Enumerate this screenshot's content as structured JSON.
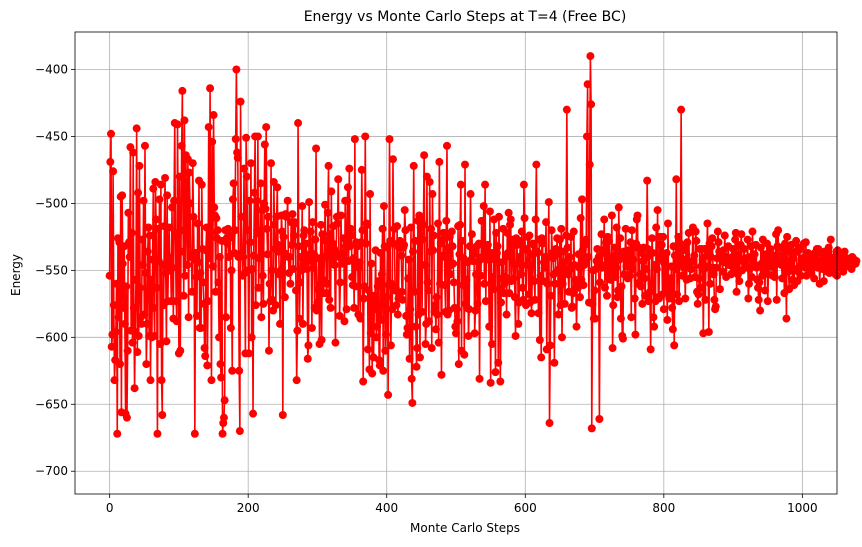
{
  "chart_data": {
    "type": "line",
    "title": "Energy vs Monte Carlo Steps at T=4 (Free BC)",
    "xlabel": "Monte Carlo Steps",
    "ylabel": "Energy",
    "xlim": [
      -50,
      1050
    ],
    "ylim": [
      -717,
      -372
    ],
    "xticks": [
      0,
      200,
      400,
      600,
      800,
      1000
    ],
    "xtick_labels": [
      "0",
      "200",
      "400",
      "600",
      "800",
      "1000"
    ],
    "yticks": [
      -400,
      -450,
      -500,
      -550,
      -600,
      -650,
      -700
    ],
    "ytick_labels": [
      "−400",
      "−450",
      "−500",
      "−550",
      "−600",
      "−650",
      "−700"
    ],
    "grid": true,
    "marker": "circle",
    "color": "#ff0000",
    "n_points": 1000,
    "series": [
      {
        "x_start": 0,
        "x_step": 1,
        "values": [
          -554,
          -469,
          -448,
          -607,
          -598,
          -476,
          -576,
          -632,
          -617,
          -596,
          -560,
          -672,
          -526,
          -585,
          -529,
          -620,
          -495,
          -656,
          -494,
          -545,
          -578,
          -532,
          -590,
          -657,
          -562,
          -660,
          -610,
          -507,
          -529,
          -540,
          -458,
          -595,
          -522,
          -604,
          -462,
          -578,
          -638,
          -596,
          -557,
          -444,
          -611,
          -492,
          -599,
          -472,
          -563,
          -585,
          -590,
          -527,
          -546,
          -498,
          -583,
          -457,
          -552,
          -620,
          -590,
          -536,
          -518,
          -599,
          -524,
          -632,
          -557,
          -600,
          -542,
          -489,
          -578,
          -599,
          -484,
          -512,
          -563,
          -672,
          -519,
          -543,
          -497,
          -605,
          -486,
          -632,
          -658,
          -546,
          -576,
          -517,
          -481,
          -552,
          -603,
          -494,
          -573,
          -540,
          -518,
          -550,
          -544,
          -573,
          -503,
          -548,
          -586,
          -498,
          -440,
          -524,
          -573,
          -588,
          -441,
          -522,
          -612,
          -480,
          -610,
          -536,
          -457,
          -416,
          -520,
          -569,
          -438,
          -554,
          -464,
          -501,
          -546,
          -467,
          -585,
          -477,
          -500,
          -540,
          -538,
          -566,
          -470,
          -510,
          -542,
          -672,
          -537,
          -555,
          -584,
          -515,
          -544,
          -483,
          -593,
          -552,
          -593,
          -486,
          -534,
          -559,
          -575,
          -608,
          -614,
          -535,
          -518,
          -621,
          -573,
          -443,
          -541,
          -414,
          -522,
          -632,
          -454,
          -547,
          -434,
          -503,
          -509,
          -566,
          -511,
          -526,
          -520,
          -559,
          -600,
          -540,
          -620,
          -630,
          -528,
          -672,
          -664,
          -660,
          -647,
          -520,
          -585,
          -526,
          -530,
          -519,
          -540,
          -526,
          -524,
          -593,
          -550,
          -625,
          -497,
          -485,
          -537,
          -520,
          -452,
          -400,
          -462,
          -466,
          -540,
          -625,
          -670,
          -424,
          -510,
          -537,
          -554,
          -540,
          -474,
          -552,
          -612,
          -451,
          -480,
          -520,
          -550,
          -612,
          -498,
          -529,
          -470,
          -600,
          -549,
          -657,
          -539,
          -492,
          -450,
          -576,
          -498,
          -520,
          -450,
          -563,
          -541,
          -523,
          -485,
          -585,
          -505,
          -554,
          -575,
          -500,
          -456,
          -504,
          -443,
          -519,
          -538,
          -510,
          -610,
          -560,
          -573,
          -470,
          -550,
          -572,
          -580,
          -484,
          -516,
          -534,
          -576,
          -510,
          -488,
          -531,
          -536,
          -553,
          -590,
          -550,
          -509,
          -521,
          -658,
          -525,
          -537,
          -570,
          -508,
          -510,
          -509,
          -498,
          -540,
          -552,
          -540,
          -560,
          -514,
          -531,
          -508,
          -549,
          -524,
          -514,
          -515,
          -565,
          -632,
          -595,
          -440,
          -532,
          -586,
          -559,
          -540,
          -550,
          -502,
          -590,
          -524,
          -520,
          -545,
          -541,
          -530,
          -549,
          -616,
          -606,
          -499,
          -538,
          -521,
          -543,
          -593,
          -514,
          -548,
          -538,
          -578,
          -527,
          -459,
          -580,
          -574,
          -564,
          -541,
          -605,
          -561,
          -516,
          -602,
          -523,
          -557,
          -567,
          -540,
          -501,
          -528,
          -567,
          -560,
          -507,
          -472,
          -572,
          -523,
          -578,
          -491,
          -541,
          -530,
          -517,
          -534,
          -546,
          -604,
          -537,
          -510,
          -515,
          -482,
          -540,
          -584,
          -559,
          -509,
          -542,
          -545,
          -537,
          -526,
          -588,
          -498,
          -532,
          -579,
          -498,
          -488,
          -543,
          -474,
          -532,
          -519,
          -524,
          -555,
          -561,
          -541,
          -578,
          -452,
          -562,
          -529,
          -530,
          -532,
          -583,
          -548,
          -544,
          -586,
          -529,
          -475,
          -520,
          -633,
          -571,
          -562,
          -450,
          -530,
          -515,
          -516,
          -609,
          -565,
          -624,
          -493,
          -597,
          -545,
          -627,
          -569,
          -615,
          -579,
          -573,
          -535,
          -600,
          -592,
          -562,
          -558,
          -617,
          -621,
          -537,
          -587,
          -553,
          -519,
          -625,
          -502,
          -532,
          -610,
          -598,
          -570,
          -533,
          -643,
          -561,
          -452,
          -528,
          -606,
          -560,
          -579,
          -467,
          -530,
          -519,
          -565,
          -563,
          -576,
          -517,
          -583,
          -571,
          -533,
          -528,
          -532,
          -539,
          -566,
          -572,
          -533,
          -531,
          -505,
          -520,
          -584,
          -598,
          -593,
          -556,
          -542,
          -616,
          -579,
          -518,
          -631,
          -649,
          -536,
          -472,
          -566,
          -528,
          -592,
          -622,
          -608,
          -513,
          -583,
          -509,
          -615,
          -518,
          -513,
          -581,
          -527,
          -516,
          -464,
          -546,
          -605,
          -590,
          -480,
          -559,
          -565,
          -588,
          -484,
          -536,
          -519,
          -608,
          -493,
          -535,
          -524,
          -581,
          -576,
          -594,
          -570,
          -583,
          -515,
          -604,
          -469,
          -560,
          -530,
          -628,
          -540,
          -539,
          -522,
          -526,
          -561,
          -581,
          -513,
          -457,
          -583,
          -533,
          -580,
          -525,
          -553,
          -546,
          -521,
          -532,
          -545,
          -559,
          -578,
          -592,
          -597,
          -579,
          -588,
          -517,
          -620,
          -538,
          -516,
          -486,
          -610,
          -528,
          -561,
          -541,
          -613,
          -471,
          -575,
          -557,
          -578,
          -544,
          -599,
          -579,
          -532,
          -493,
          -542,
          -523,
          -543,
          -538,
          -535,
          -597,
          -580,
          -553,
          -532,
          -575,
          -544,
          -530,
          -631,
          -542,
          -554,
          -513,
          -540,
          -541,
          -502,
          -560,
          -486,
          -573,
          -533,
          -541,
          -531,
          -542,
          -592,
          -506,
          -634,
          -537,
          -605,
          -555,
          -564,
          -512,
          -542,
          -626,
          -522,
          -537,
          -532,
          -619,
          -510,
          -564,
          -633,
          -574,
          -544,
          -556,
          -519,
          -567,
          -560,
          -555,
          -540,
          -583,
          -522,
          -537,
          -507,
          -567,
          -516,
          -512,
          -558,
          -530,
          -527,
          -556,
          -531,
          -570,
          -599,
          -526,
          -531,
          -545,
          -590,
          -574,
          -540,
          -528,
          -553,
          -521,
          -563,
          -572,
          -486,
          -511,
          -534,
          -576,
          -546,
          -535,
          -525,
          -568,
          -524,
          -574,
          -538,
          -582,
          -557,
          -530,
          -531,
          -558,
          -572,
          -512,
          -471,
          -536,
          -537,
          -582,
          -527,
          -602,
          -554,
          -615,
          -526,
          -530,
          -558,
          -544,
          -548,
          -540,
          -514,
          -609,
          -560,
          -540,
          -499,
          -664,
          -606,
          -569,
          -520,
          -537,
          -541,
          -553,
          -619,
          -560,
          -534,
          -538,
          -526,
          -550,
          -583,
          -549,
          -527,
          -576,
          -519,
          -600,
          -560,
          -536,
          -544,
          -575,
          -549,
          -524,
          -430,
          -533,
          -553,
          -566,
          -540,
          -549,
          -525,
          -578,
          -577,
          -567,
          -521,
          -546,
          -557,
          -563,
          -592,
          -559,
          -563,
          -538,
          -548,
          -570,
          -511,
          -557,
          -497,
          -535,
          -561,
          -546,
          -531,
          -543,
          -527,
          -450,
          -411,
          -540,
          -574,
          -471,
          -390,
          -426,
          -668,
          -575,
          -550,
          -586,
          -565,
          -586,
          -549,
          -543,
          -534,
          -546,
          -540,
          -661,
          -559,
          -547,
          -523,
          -548,
          -537,
          -535,
          -512,
          -563,
          -546,
          -529,
          -569,
          -525,
          -553,
          -528,
          -542,
          -557,
          -546,
          -509,
          -608,
          -576,
          -539,
          -533,
          -555,
          -548,
          -518,
          -570,
          -565,
          -503,
          -542,
          -526,
          -586,
          -562,
          -599,
          -601,
          -536,
          -553,
          -539,
          -519,
          -547,
          -544,
          -556,
          -535,
          -540,
          -554,
          -529,
          -585,
          -520,
          -549,
          -542,
          -533,
          -571,
          -598,
          -530,
          -512,
          -509,
          -560,
          -533,
          -559,
          -553,
          -562,
          -537,
          -575,
          -543,
          -533,
          -556,
          -569,
          -549,
          -540,
          -483,
          -534,
          -573,
          -539,
          -566,
          -609,
          -560,
          -526,
          -537,
          -585,
          -592,
          -546,
          -573,
          -518,
          -549,
          -505,
          -570,
          -571,
          -531,
          -525,
          -542,
          -531,
          -568,
          -525,
          -579,
          -545,
          -539,
          -565,
          -537,
          -587,
          -515,
          -567,
          -571,
          -556,
          -565,
          -547,
          -578,
          -594,
          -532,
          -606,
          -539,
          -549,
          -482,
          -568,
          -541,
          -525,
          -573,
          -538,
          -530,
          -430,
          -545,
          -554,
          -535,
          -548,
          -542,
          -571,
          -531,
          -557,
          -529,
          -547,
          -522,
          -547,
          -556,
          -549,
          -549,
          -543,
          -518,
          -543,
          -539,
          -555,
          -521,
          -528,
          -566,
          -575,
          -568,
          -556,
          -534,
          -563,
          -547,
          -534,
          -542,
          -597,
          -549,
          -534,
          -572,
          -534,
          -539,
          -515,
          -547,
          -596,
          -530,
          -560,
          -540,
          -532,
          -526,
          -548,
          -553,
          -572,
          -579,
          -577,
          -548,
          -541,
          -521,
          -529,
          -536,
          -564,
          -541,
          -538,
          -539,
          -551,
          -535,
          -544,
          -524,
          -543,
          -555,
          -540,
          -541,
          -532,
          -546,
          -541,
          -544,
          -553,
          -545,
          -547,
          -534,
          -539,
          -550,
          -527,
          -522,
          -566,
          -538,
          -553,
          -532,
          -558,
          -541,
          -531,
          -523,
          -550,
          -543,
          -542,
          -534,
          -548,
          -543,
          -541,
          -547,
          -527,
          -571,
          -560,
          -549,
          -540,
          -532,
          -555,
          -521,
          -541,
          -546,
          -538,
          -546,
          -531,
          -548,
          -557,
          -563,
          -572,
          -559,
          -580,
          -533,
          -545,
          -554,
          -527,
          -549,
          -549,
          -565,
          -538,
          -543,
          -530,
          -573,
          -553,
          -547,
          -536,
          -534,
          -539,
          -544,
          -554,
          -548,
          -539,
          -555,
          -543,
          -523,
          -572,
          -532,
          -520,
          -545,
          -539,
          -542,
          -533,
          -546,
          -556,
          -542,
          -534,
          -567,
          -530,
          -544,
          -586,
          -525,
          -536,
          -551,
          -564,
          -536,
          -543,
          -531,
          -548,
          -557,
          -541,
          -561,
          -537,
          -536,
          -528,
          -549,
          -558,
          -551,
          -535,
          -533,
          -547,
          -554,
          -542,
          -541,
          -543,
          -530,
          -545,
          -548,
          -529,
          -554,
          -548,
          -537,
          -544,
          -546,
          -543,
          -539,
          -552,
          -542,
          -547,
          -543,
          -556,
          -537,
          -541,
          -546,
          -534,
          -548,
          -534,
          -543,
          -560,
          -546,
          -537,
          -544,
          -549,
          -538,
          -558,
          -536,
          -545,
          -543,
          -538,
          -551,
          -541,
          -533,
          -552,
          -548,
          -527,
          -541,
          -548,
          -543,
          -544,
          -542,
          -540,
          -553,
          -536,
          -554,
          -535,
          -542,
          -548,
          -547,
          -544,
          -537,
          -539,
          -547,
          -551,
          -542,
          -536,
          -543,
          -546,
          -541,
          -547,
          -544,
          -543,
          -542,
          -545,
          -541,
          -549,
          -540,
          -546,
          -544,
          -542,
          -544,
          -545,
          -543
        ]
      }
    ]
  }
}
